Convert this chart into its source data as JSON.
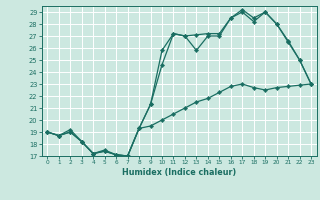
{
  "xlabel": "Humidex (Indice chaleur)",
  "xlim": [
    -0.5,
    23.5
  ],
  "ylim": [
    17,
    29.5
  ],
  "yticks": [
    17,
    18,
    19,
    20,
    21,
    22,
    23,
    24,
    25,
    26,
    27,
    28,
    29
  ],
  "xticks": [
    0,
    1,
    2,
    3,
    4,
    5,
    6,
    7,
    8,
    9,
    10,
    11,
    12,
    13,
    14,
    15,
    16,
    17,
    18,
    19,
    20,
    21,
    22,
    23
  ],
  "bg_color": "#cce8e0",
  "grid_color": "#ffffff",
  "line_color": "#1a6e62",
  "line1_x": [
    0,
    1,
    2,
    3,
    4,
    5,
    6,
    7,
    8,
    9,
    10,
    11,
    12,
    13,
    14,
    15,
    16,
    17,
    18,
    19,
    20,
    21,
    22,
    23
  ],
  "line1_y": [
    19.0,
    18.7,
    19.0,
    18.2,
    17.2,
    17.4,
    17.1,
    17.0,
    19.3,
    19.5,
    20.0,
    20.5,
    21.0,
    21.5,
    21.8,
    22.3,
    22.8,
    23.0,
    22.7,
    22.5,
    22.7,
    22.8,
    22.9,
    23.0
  ],
  "line2_x": [
    0,
    1,
    2,
    3,
    4,
    5,
    6,
    7,
    8,
    9,
    10,
    11,
    12,
    13,
    14,
    15,
    16,
    17,
    18,
    19,
    20,
    21,
    22,
    23
  ],
  "line2_y": [
    19.0,
    18.7,
    19.0,
    18.2,
    17.2,
    17.4,
    17.1,
    17.0,
    19.3,
    21.3,
    24.6,
    27.2,
    27.0,
    25.8,
    27.0,
    27.0,
    28.5,
    29.0,
    28.2,
    29.0,
    28.0,
    26.5,
    25.0,
    23.0
  ],
  "line3_x": [
    0,
    1,
    2,
    3,
    4,
    5,
    6,
    7,
    8,
    9,
    10,
    11,
    12,
    13,
    14,
    15,
    16,
    17,
    18,
    19,
    20,
    21,
    22,
    23
  ],
  "line3_y": [
    19.0,
    18.7,
    19.2,
    18.2,
    17.2,
    17.5,
    17.1,
    17.0,
    19.3,
    21.3,
    25.8,
    27.2,
    27.0,
    27.1,
    27.2,
    27.2,
    28.5,
    29.2,
    28.5,
    29.0,
    28.0,
    26.6,
    25.0,
    23.0
  ]
}
